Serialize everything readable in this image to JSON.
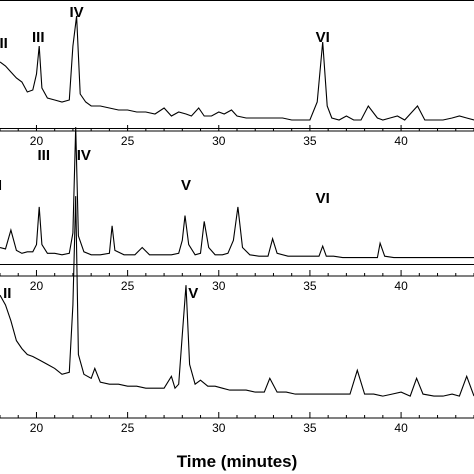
{
  "chart_data": [
    {
      "type": "line",
      "x_range": [
        18,
        44
      ],
      "tick_values": [
        20,
        25,
        30,
        35,
        40
      ],
      "tick_labels": [
        "20",
        "25",
        "30",
        "35",
        "40"
      ],
      "peak_labels": [
        {
          "text": "II",
          "x": 18.2
        },
        {
          "text": "III",
          "x": 20.1
        },
        {
          "text": "IV",
          "x": 22.2
        },
        {
          "text": "VI",
          "x": 35.7
        }
      ],
      "series": [
        {
          "x": [
            18.0,
            18.3,
            18.6,
            18.9,
            19.2,
            19.5,
            19.8,
            20.0,
            20.15,
            20.3,
            20.6,
            21.0,
            21.4,
            21.8,
            22.0,
            22.2,
            22.4,
            22.7,
            23.0,
            23.5,
            24.0,
            24.5,
            25.0,
            25.5,
            26.0,
            26.5,
            27.0,
            27.4,
            27.8,
            28.2,
            28.5,
            28.9,
            29.2,
            29.6,
            30.0,
            30.3,
            30.7,
            31.0,
            31.5,
            32.0,
            32.5,
            33.0,
            33.5,
            34.0,
            34.5,
            35.0,
            35.4,
            35.7,
            35.95,
            36.2,
            36.6,
            37.0,
            37.4,
            37.8,
            38.2,
            38.7,
            39.0,
            39.4,
            39.8,
            40.2,
            40.6,
            40.9,
            41.3,
            41.8,
            42.3,
            42.8,
            43.2,
            43.6,
            44.0
          ],
          "y": [
            0.32,
            0.3,
            0.27,
            0.24,
            0.22,
            0.17,
            0.18,
            0.26,
            0.4,
            0.19,
            0.14,
            0.13,
            0.12,
            0.13,
            0.4,
            0.55,
            0.16,
            0.12,
            0.1,
            0.1,
            0.09,
            0.08,
            0.08,
            0.07,
            0.07,
            0.06,
            0.09,
            0.05,
            0.07,
            0.06,
            0.05,
            0.09,
            0.05,
            0.05,
            0.07,
            0.06,
            0.08,
            0.05,
            0.04,
            0.04,
            0.04,
            0.04,
            0.04,
            0.03,
            0.03,
            0.03,
            0.12,
            0.42,
            0.1,
            0.04,
            0.03,
            0.05,
            0.03,
            0.03,
            0.1,
            0.04,
            0.03,
            0.04,
            0.05,
            0.03,
            0.07,
            0.1,
            0.03,
            0.03,
            0.03,
            0.04,
            0.05,
            0.04,
            0.03
          ]
        }
      ]
    },
    {
      "type": "line",
      "x_range": [
        18,
        44
      ],
      "tick_values": [
        20,
        25,
        30,
        35,
        40
      ],
      "tick_labels": [
        "20",
        "25",
        "30",
        "35",
        "40"
      ],
      "peak_labels": [
        {
          "text": "I",
          "x": 18.0
        },
        {
          "text": "III",
          "x": 20.4
        },
        {
          "text": "IV",
          "x": 22.6
        },
        {
          "text": "V",
          "x": 28.2
        },
        {
          "text": "VI",
          "x": 35.7
        }
      ],
      "series": [
        {
          "x": [
            18.0,
            18.3,
            18.6,
            18.9,
            19.2,
            19.5,
            19.8,
            20.0,
            20.15,
            20.3,
            20.6,
            21.0,
            21.4,
            21.8,
            22.0,
            22.15,
            22.3,
            22.6,
            23.0,
            23.5,
            24.0,
            24.15,
            24.3,
            24.8,
            25.4,
            25.8,
            26.2,
            26.8,
            27.4,
            27.8,
            28.0,
            28.15,
            28.35,
            28.7,
            29.0,
            29.2,
            29.45,
            29.8,
            30.2,
            30.5,
            30.8,
            31.05,
            31.3,
            31.7,
            32.2,
            32.7,
            32.95,
            33.2,
            33.8,
            34.3,
            34.8,
            35.2,
            35.5,
            35.7,
            35.9,
            36.3,
            36.8,
            37.2,
            37.8,
            38.3,
            38.7,
            38.85,
            39.1,
            39.6,
            40.1,
            40.6,
            41.1,
            41.6,
            42.1,
            42.6,
            43.1,
            43.6,
            44.0
          ],
          "y": [
            0.1,
            0.09,
            0.22,
            0.08,
            0.06,
            0.07,
            0.07,
            0.12,
            0.38,
            0.12,
            0.06,
            0.06,
            0.05,
            0.06,
            0.2,
            0.93,
            0.18,
            0.07,
            0.05,
            0.05,
            0.06,
            0.25,
            0.08,
            0.05,
            0.05,
            0.1,
            0.05,
            0.05,
            0.05,
            0.06,
            0.15,
            0.32,
            0.12,
            0.05,
            0.06,
            0.28,
            0.1,
            0.05,
            0.05,
            0.06,
            0.15,
            0.38,
            0.1,
            0.05,
            0.04,
            0.04,
            0.16,
            0.06,
            0.04,
            0.04,
            0.04,
            0.04,
            0.04,
            0.11,
            0.04,
            0.04,
            0.03,
            0.03,
            0.03,
            0.03,
            0.03,
            0.13,
            0.04,
            0.03,
            0.03,
            0.03,
            0.03,
            0.03,
            0.03,
            0.03,
            0.03,
            0.03,
            0.03
          ]
        }
      ]
    },
    {
      "type": "line",
      "x_range": [
        18,
        44
      ],
      "tick_values": [
        20,
        25,
        30,
        35,
        40
      ],
      "tick_labels": [
        "20",
        "25",
        "30",
        "35",
        "40"
      ],
      "xlabel": "Time (minutes)",
      "peak_labels": [
        {
          "text": "II",
          "x": 18.4
        },
        {
          "text": "V",
          "x": 28.6
        }
      ],
      "series": [
        {
          "x": [
            18.0,
            18.3,
            18.6,
            18.9,
            19.2,
            19.5,
            19.8,
            20.2,
            20.6,
            21.0,
            21.4,
            21.8,
            22.0,
            22.15,
            22.3,
            22.6,
            23.0,
            23.2,
            23.5,
            24.0,
            24.5,
            25.0,
            25.5,
            26.0,
            26.5,
            27.0,
            27.4,
            27.6,
            27.8,
            28.0,
            28.2,
            28.4,
            28.7,
            29.0,
            29.4,
            29.8,
            30.2,
            30.6,
            31.0,
            31.5,
            32.0,
            32.5,
            32.8,
            33.2,
            33.7,
            34.2,
            34.8,
            35.3,
            35.8,
            36.3,
            36.8,
            37.2,
            37.6,
            38.0,
            38.5,
            39.0,
            39.5,
            40.0,
            40.5,
            40.85,
            41.2,
            41.8,
            42.3,
            42.8,
            43.2,
            43.6,
            44.0
          ],
          "y": [
            0.55,
            0.5,
            0.42,
            0.32,
            0.28,
            0.25,
            0.24,
            0.22,
            0.2,
            0.18,
            0.15,
            0.16,
            0.5,
            1.05,
            0.25,
            0.15,
            0.13,
            0.18,
            0.11,
            0.1,
            0.1,
            0.09,
            0.09,
            0.08,
            0.08,
            0.08,
            0.14,
            0.08,
            0.1,
            0.35,
            0.6,
            0.2,
            0.1,
            0.12,
            0.09,
            0.09,
            0.08,
            0.07,
            0.07,
            0.07,
            0.06,
            0.06,
            0.13,
            0.06,
            0.06,
            0.05,
            0.05,
            0.05,
            0.05,
            0.05,
            0.05,
            0.05,
            0.17,
            0.05,
            0.05,
            0.04,
            0.05,
            0.06,
            0.04,
            0.13,
            0.05,
            0.04,
            0.04,
            0.05,
            0.04,
            0.14,
            0.04
          ]
        }
      ]
    }
  ]
}
